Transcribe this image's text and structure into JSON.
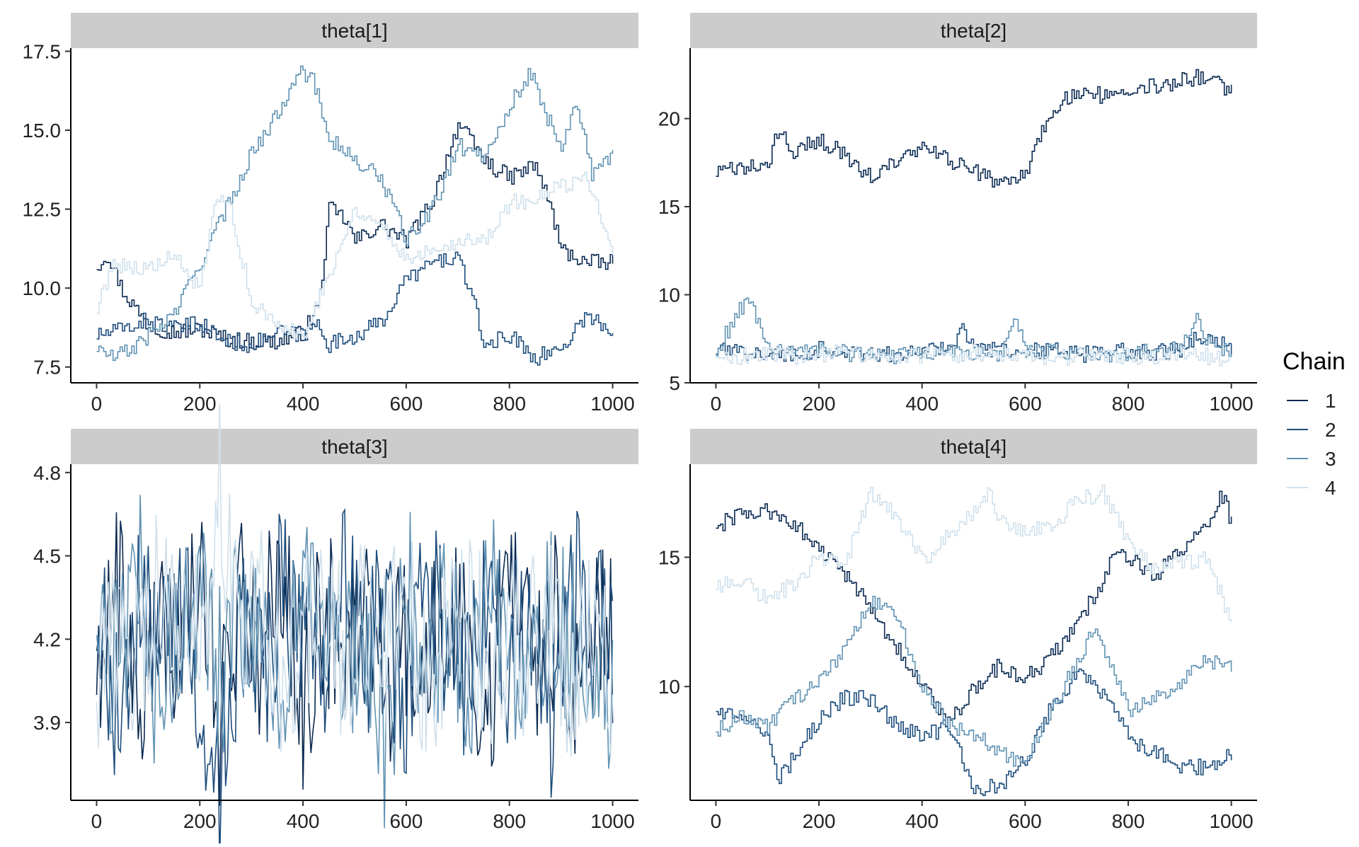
{
  "legend": {
    "title": "Chain",
    "position": "right",
    "entries": [
      {
        "label": "1",
        "color": "#0b2a52"
      },
      {
        "label": "2",
        "color": "#1d4d7c"
      },
      {
        "label": "3",
        "color": "#6293b3"
      },
      {
        "label": "4",
        "color": "#cfe0ec"
      }
    ]
  },
  "colors": {
    "strip": "#cccccc",
    "axis": "#000000",
    "background": "#ffffff"
  },
  "chart_data": [
    {
      "type": "line",
      "title": "theta[1]",
      "xlabel": "",
      "ylabel": "",
      "xlim": [
        -50,
        1050
      ],
      "ylim": [
        7.0,
        17.6
      ],
      "xticks": [
        0,
        200,
        400,
        600,
        800,
        1000
      ],
      "yticks": [
        7.5,
        10.0,
        12.5,
        15.0,
        17.5
      ],
      "ytick_labels": [
        "7.5",
        "10.0",
        "12.5",
        "15.0",
        "17.5"
      ],
      "grid": false,
      "series": [
        {
          "name": "1",
          "x": [
            0,
            20,
            50,
            100,
            150,
            200,
            250,
            300,
            350,
            400,
            430,
            450,
            480,
            500,
            550,
            600,
            650,
            700,
            740,
            760,
            800,
            850,
            880,
            900,
            950,
            1000
          ],
          "y": [
            10.7,
            11.1,
            9.9,
            8.8,
            8.6,
            8.7,
            8.4,
            8.3,
            8.3,
            8.6,
            9.5,
            12.5,
            12.2,
            11.5,
            12.0,
            11.5,
            12.8,
            15.2,
            14.3,
            13.9,
            13.5,
            13.9,
            12.5,
            11.2,
            10.8,
            10.8
          ]
        },
        {
          "name": "2",
          "x": [
            0,
            50,
            100,
            150,
            200,
            250,
            300,
            350,
            400,
            430,
            450,
            500,
            550,
            600,
            650,
            700,
            730,
            750,
            800,
            850,
            900,
            950,
            1000
          ],
          "y": [
            8.5,
            8.7,
            9.0,
            8.7,
            8.9,
            8.3,
            8.2,
            8.6,
            8.5,
            8.9,
            8.2,
            8.5,
            8.9,
            10.3,
            10.8,
            11.0,
            9.5,
            8.2,
            8.5,
            7.8,
            8.1,
            9.2,
            8.5
          ]
        },
        {
          "name": "3",
          "x": [
            0,
            30,
            60,
            100,
            150,
            200,
            250,
            300,
            350,
            390,
            420,
            450,
            500,
            550,
            600,
            650,
            700,
            750,
            800,
            840,
            870,
            900,
            930,
            960,
            1000
          ],
          "y": [
            8.1,
            7.8,
            8.0,
            8.5,
            9.2,
            10.8,
            12.5,
            14.3,
            15.5,
            17.0,
            16.5,
            14.8,
            14.0,
            13.5,
            11.5,
            12.5,
            14.5,
            14.2,
            15.8,
            16.8,
            15.5,
            14.5,
            16.0,
            13.5,
            14.2
          ]
        },
        {
          "name": "4",
          "x": [
            0,
            30,
            60,
            100,
            150,
            200,
            230,
            260,
            300,
            350,
            400,
            450,
            500,
            550,
            600,
            650,
            700,
            750,
            800,
            850,
            900,
            950,
            1000
          ],
          "y": [
            9.3,
            10.8,
            10.7,
            10.6,
            11.0,
            9.9,
            12.8,
            12.5,
            9.5,
            8.8,
            8.5,
            10.5,
            12.5,
            12.0,
            10.9,
            11.3,
            11.5,
            11.5,
            12.7,
            12.8,
            13.2,
            13.5,
            11.3
          ]
        }
      ]
    },
    {
      "type": "line",
      "title": "theta[2]",
      "xlabel": "",
      "ylabel": "",
      "xlim": [
        -50,
        1050
      ],
      "ylim": [
        5.0,
        24.0
      ],
      "xticks": [
        0,
        200,
        400,
        600,
        800,
        1000
      ],
      "yticks": [
        5,
        10,
        15,
        20
      ],
      "ytick_labels": [
        "5",
        "10",
        "15",
        "20"
      ],
      "grid": false,
      "series": [
        {
          "name": "1",
          "x": [
            0,
            50,
            100,
            120,
            150,
            200,
            250,
            300,
            350,
            400,
            450,
            500,
            560,
            580,
            600,
            650,
            700,
            750,
            800,
            850,
            900,
            950,
            1000
          ],
          "y": [
            16.9,
            17.2,
            17.3,
            19.3,
            18.2,
            18.7,
            18.0,
            16.6,
            17.6,
            18.3,
            17.6,
            17.0,
            16.2,
            16.6,
            17.0,
            20.5,
            21.5,
            21.3,
            21.8,
            21.9,
            22.1,
            22.5,
            21.5
          ]
        },
        {
          "name": "2",
          "x": [
            0,
            50,
            100,
            150,
            200,
            250,
            300,
            350,
            400,
            450,
            480,
            500,
            550,
            600,
            650,
            700,
            750,
            800,
            850,
            900,
            950,
            1000
          ],
          "y": [
            6.8,
            6.7,
            6.8,
            6.6,
            6.9,
            6.8,
            6.7,
            6.5,
            6.8,
            7.2,
            8.0,
            7.0,
            6.9,
            6.8,
            6.9,
            6.6,
            6.7,
            6.8,
            6.7,
            6.9,
            7.8,
            6.9
          ]
        },
        {
          "name": "3",
          "x": [
            0,
            30,
            60,
            80,
            100,
            150,
            200,
            250,
            300,
            350,
            400,
            450,
            500,
            550,
            580,
            600,
            650,
            700,
            750,
            800,
            850,
            900,
            930,
            960,
            1000
          ],
          "y": [
            6.7,
            8.4,
            9.8,
            8.5,
            6.8,
            6.6,
            6.8,
            6.7,
            6.6,
            6.5,
            6.7,
            6.8,
            6.6,
            6.7,
            8.4,
            6.9,
            6.7,
            6.8,
            6.6,
            6.7,
            6.8,
            6.9,
            8.6,
            7.1,
            6.8
          ]
        },
        {
          "name": "4",
          "x": [
            0,
            50,
            100,
            150,
            200,
            250,
            300,
            350,
            400,
            450,
            500,
            550,
            600,
            650,
            700,
            750,
            800,
            850,
            900,
            950,
            1000
          ],
          "y": [
            6.6,
            6.5,
            6.7,
            6.5,
            6.6,
            6.8,
            6.6,
            6.4,
            6.6,
            6.5,
            6.7,
            6.5,
            6.6,
            6.4,
            6.5,
            6.6,
            6.5,
            6.4,
            6.6,
            6.5,
            6.4
          ]
        }
      ]
    },
    {
      "type": "line",
      "title": "theta[3]",
      "xlabel": "",
      "ylabel": "",
      "xlim": [
        -50,
        1050
      ],
      "ylim": [
        3.62,
        4.83
      ],
      "xticks": [
        0,
        200,
        400,
        600,
        800,
        1000
      ],
      "yticks": [
        3.9,
        4.2,
        4.5,
        4.8
      ],
      "ytick_labels": [
        "3.9",
        "4.2",
        "4.5",
        "4.8"
      ],
      "grid": false,
      "series": [
        {
          "name": "1",
          "x": [
            0,
            40,
            80,
            120,
            160,
            200,
            240,
            280,
            320,
            360,
            400,
            440,
            480,
            520,
            560,
            600,
            640,
            680,
            720,
            760,
            800,
            840,
            880,
            920,
            960,
            1000
          ],
          "y": [
            4.1,
            4.45,
            3.95,
            4.3,
            4.05,
            4.4,
            3.9,
            4.35,
            4.15,
            4.5,
            3.98,
            4.3,
            4.1,
            4.45,
            3.95,
            4.25,
            4.05,
            4.35,
            4.15,
            3.95,
            4.4,
            4.1,
            4.3,
            4.05,
            4.35,
            4.2
          ]
        },
        {
          "name": "2",
          "x": [
            0,
            40,
            80,
            120,
            160,
            200,
            240,
            280,
            320,
            360,
            400,
            440,
            480,
            520,
            560,
            600,
            640,
            680,
            720,
            760,
            800,
            840,
            880,
            920,
            960,
            1000
          ],
          "y": [
            4.25,
            3.95,
            4.4,
            4.05,
            4.35,
            4.1,
            3.7,
            4.3,
            4.0,
            4.45,
            4.15,
            3.95,
            4.4,
            4.1,
            4.3,
            3.92,
            4.45,
            4.2,
            4.0,
            4.35,
            4.1,
            4.3,
            3.95,
            4.4,
            4.15,
            4.35
          ]
        },
        {
          "name": "3",
          "x": [
            0,
            40,
            80,
            120,
            160,
            200,
            240,
            280,
            320,
            360,
            400,
            440,
            480,
            520,
            560,
            600,
            640,
            680,
            720,
            760,
            800,
            840,
            880,
            920,
            960,
            1000
          ],
          "y": [
            4.3,
            4.1,
            4.45,
            3.95,
            4.25,
            4.4,
            4.05,
            4.3,
            4.15,
            4.0,
            4.35,
            4.2,
            4.05,
            4.3,
            3.75,
            4.4,
            4.1,
            4.25,
            4.0,
            4.35,
            4.15,
            4.05,
            4.3,
            4.2,
            4.1,
            3.92
          ]
        },
        {
          "name": "4",
          "x": [
            0,
            40,
            80,
            120,
            160,
            200,
            240,
            280,
            320,
            360,
            400,
            440,
            480,
            520,
            560,
            600,
            640,
            680,
            720,
            760,
            800,
            840,
            880,
            920,
            960,
            1000
          ],
          "y": [
            4.05,
            4.25,
            4.15,
            4.35,
            4.1,
            4.2,
            4.75,
            4.15,
            4.3,
            4.05,
            4.2,
            4.35,
            4.1,
            4.25,
            4.15,
            4.3,
            4.05,
            4.2,
            4.3,
            4.1,
            4.25,
            4.15,
            4.3,
            4.05,
            4.2,
            4.1
          ]
        }
      ]
    },
    {
      "type": "line",
      "title": "theta[4]",
      "xlabel": "",
      "ylabel": "",
      "xlim": [
        -50,
        1050
      ],
      "ylim": [
        5.6,
        18.6
      ],
      "xticks": [
        0,
        200,
        400,
        600,
        800,
        1000
      ],
      "yticks": [
        10,
        15
      ],
      "ytick_labels": [
        "10",
        "15"
      ],
      "grid": false,
      "series": [
        {
          "name": "1",
          "x": [
            0,
            50,
            100,
            150,
            200,
            250,
            300,
            350,
            400,
            450,
            500,
            550,
            600,
            650,
            700,
            750,
            780,
            800,
            850,
            900,
            950,
            980,
            1000
          ],
          "y": [
            16.2,
            16.7,
            16.8,
            16.3,
            15.3,
            14.3,
            13.0,
            11.5,
            10.0,
            8.5,
            10.0,
            10.8,
            10.3,
            11.2,
            12.5,
            14.0,
            15.5,
            15.0,
            14.3,
            15.2,
            16.2,
            17.5,
            16.3
          ]
        },
        {
          "name": "2",
          "x": [
            0,
            50,
            100,
            120,
            150,
            200,
            250,
            300,
            350,
            400,
            450,
            500,
            550,
            600,
            650,
            700,
            750,
            800,
            850,
            900,
            950,
            1000
          ],
          "y": [
            9.1,
            8.6,
            8.3,
            6.5,
            7.2,
            8.8,
            9.6,
            9.5,
            8.5,
            8.0,
            8.5,
            6.0,
            6.2,
            7.2,
            9.2,
            10.5,
            9.8,
            8.0,
            7.5,
            6.8,
            6.9,
            7.4
          ]
        },
        {
          "name": "3",
          "x": [
            0,
            50,
            100,
            150,
            200,
            250,
            300,
            350,
            400,
            450,
            500,
            550,
            600,
            650,
            700,
            730,
            760,
            800,
            850,
            900,
            950,
            1000
          ],
          "y": [
            8.3,
            8.8,
            8.5,
            9.5,
            10.2,
            11.5,
            13.2,
            12.8,
            10.0,
            8.5,
            8.2,
            7.5,
            7.0,
            9.0,
            11.0,
            12.2,
            11.0,
            9.0,
            9.5,
            10.2,
            11.0,
            10.7
          ]
        },
        {
          "name": "4",
          "x": [
            0,
            50,
            100,
            150,
            200,
            250,
            300,
            350,
            400,
            450,
            500,
            530,
            550,
            600,
            650,
            700,
            750,
            800,
            850,
            900,
            950,
            1000
          ],
          "y": [
            13.8,
            14.2,
            13.3,
            14.0,
            15.0,
            14.8,
            17.5,
            16.5,
            14.8,
            15.8,
            16.8,
            17.5,
            16.5,
            16.0,
            16.2,
            17.2,
            17.5,
            15.5,
            14.5,
            14.8,
            14.9,
            12.5
          ]
        }
      ]
    }
  ]
}
